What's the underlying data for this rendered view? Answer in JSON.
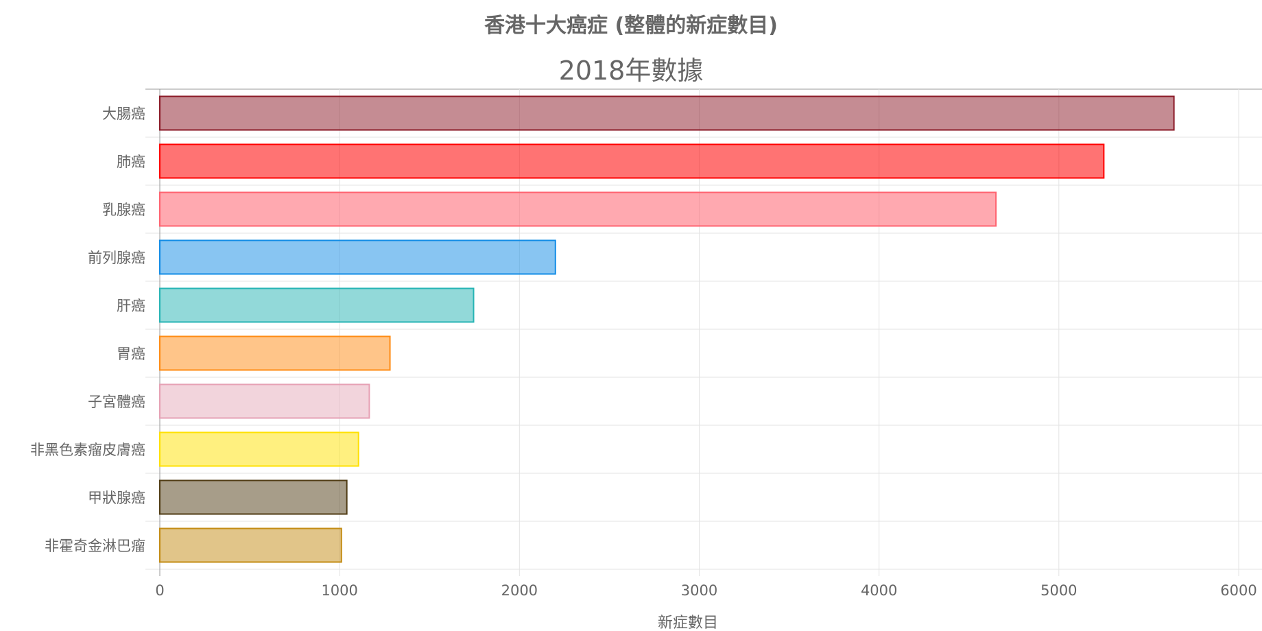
{
  "chart_data": {
    "type": "bar",
    "orientation": "horizontal",
    "title": "香港十大癌症 (整體的新症數目)",
    "subtitle": "2018年數據",
    "xlabel": "新症數目",
    "ylabel": "",
    "xlim": [
      0,
      6000
    ],
    "x_ticks": [
      "0",
      "1000",
      "2000",
      "3000",
      "4000",
      "5000",
      "6000"
    ],
    "grid": true,
    "legend": "none",
    "categories": [
      "大腸癌",
      "肺癌",
      "乳腺癌",
      "前列腺癌",
      "肝癌",
      "胃癌",
      "子宮體癌",
      "非黑色素瘤皮膚癌",
      "甲狀腺癌",
      "非霍奇金淋巴瘤"
    ],
    "values": [
      5640,
      5250,
      4650,
      2200,
      1745,
      1280,
      1165,
      1105,
      1040,
      1010
    ],
    "colors": {
      "fill": [
        "rgba(139,26,39,0.5)",
        "rgba(255,0,0,0.55)",
        "rgba(255,99,112,0.55)",
        "rgba(18,140,230,0.5)",
        "rgba(38,180,180,0.5)",
        "rgba(255,140,20,0.5)",
        "rgba(230,170,185,0.5)",
        "rgba(255,225,0,0.5)",
        "rgba(80,60,20,0.5)",
        "rgba(195,140,20,0.5)"
      ],
      "stroke": [
        "#8b1a27",
        "#ff0000",
        "#ff6370",
        "#128ce6",
        "#26b4b4",
        "#ff8c14",
        "#e6a0b4",
        "#ffe100",
        "#503c14",
        "#c38c14"
      ]
    }
  }
}
